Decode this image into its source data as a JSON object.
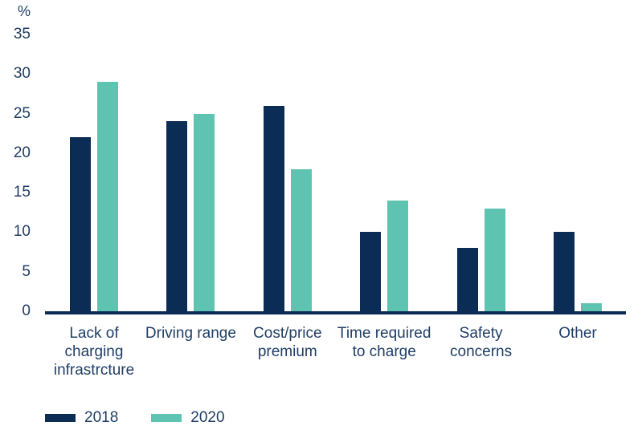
{
  "chart_data": {
    "type": "bar",
    "title": "",
    "xlabel": "",
    "ylabel": "%",
    "ylim": [
      0,
      35
    ],
    "yticks": [
      0,
      5,
      10,
      15,
      20,
      25,
      30,
      35
    ],
    "grid": false,
    "legend_position": "bottom-left",
    "categories": [
      "Lack of\ncharging\ninfrastrcture",
      "Driving range",
      "Cost/price\npremium",
      "Time required\nto charge",
      "Safety\nconcerns",
      "Other"
    ],
    "series": [
      {
        "name": "2018",
        "color": "#0b2d55",
        "values": [
          22,
          24,
          26,
          10,
          8,
          10
        ]
      },
      {
        "name": "2020",
        "color": "#5ec3b1",
        "values": [
          29,
          25,
          18,
          14,
          13,
          1
        ]
      }
    ]
  },
  "colors": {
    "bar_2018": "#0b2d55",
    "bar_2020": "#5ec3b1",
    "axis_line": "#0b2d55",
    "text": "#203e66",
    "background": "#ffffff"
  }
}
